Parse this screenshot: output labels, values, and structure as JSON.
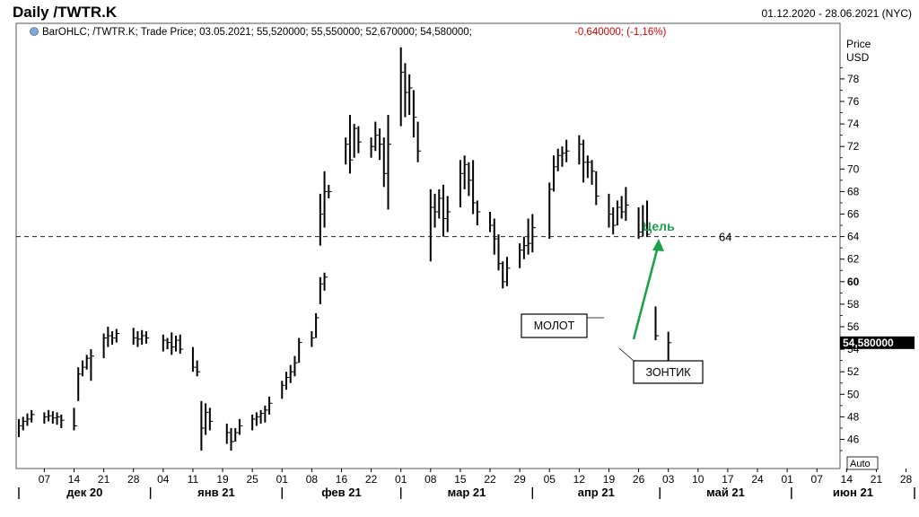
{
  "header": {
    "title": "Daily /TWTR.K",
    "date_range": "01.12.2020 - 28.06.2021 (NYC)"
  },
  "legend": {
    "prefix": "BarOHLC; /TWTR.K; Trade Price;  03.05.2021; 55,520000; 55,550000; 52,670000; 54,580000;",
    "change": "-0,640000; (-1,16%)"
  },
  "axis": {
    "y_title_1": "Price",
    "y_title_2": "USD",
    "y_ticks": [
      "46",
      "48",
      "50",
      "52",
      "54",
      "56",
      "58",
      "60",
      "62",
      "64",
      "66",
      "68",
      "70",
      "72",
      "74",
      "76",
      "78"
    ],
    "last_price": "54,580000",
    "auto_label": "Auto",
    "day_ticks": [
      "07",
      "14",
      "21",
      "28",
      "04",
      "11",
      "19",
      "25",
      "01",
      "08",
      "16",
      "22",
      "01",
      "08",
      "15",
      "22",
      "29",
      "05",
      "12",
      "19",
      "26",
      "03",
      "10",
      "17",
      "24",
      "01",
      "07",
      "14",
      "21",
      "28"
    ],
    "months": [
      "дек 20",
      "янв 21",
      "фев 21",
      "мар 21",
      "апр 21",
      "май 21",
      "июн 21"
    ]
  },
  "annotations": {
    "target_label": "Цель",
    "level_label": "64",
    "hammer_label": "МОЛОТ",
    "umbrella_label": "ЗОНТИК"
  },
  "colors": {
    "bar": "#000000",
    "target": "#1aa24a",
    "negative": "#d40000",
    "last_price_bg": "#000000"
  },
  "chart_data": {
    "type": "ohlc",
    "title": "Daily /TWTR.K",
    "ylabel": "Price USD",
    "ylim": [
      44,
      82
    ],
    "xlim": [
      "2020-12-01",
      "2021-06-28"
    ],
    "level": 64,
    "bars": [
      [
        "2020-12-01",
        47.8,
        46.2,
        47.2
      ],
      [
        "2020-12-02",
        48.0,
        46.8,
        47.6
      ],
      [
        "2020-12-03",
        48.3,
        47.2,
        47.8
      ],
      [
        "2020-12-04",
        48.6,
        47.5,
        48.2
      ],
      [
        "2020-12-07",
        48.4,
        47.4,
        48.0
      ],
      [
        "2020-12-08",
        48.6,
        47.6,
        48.1
      ],
      [
        "2020-12-09",
        48.5,
        47.4,
        47.9
      ],
      [
        "2020-12-10",
        48.4,
        47.3,
        48.0
      ],
      [
        "2020-12-11",
        48.2,
        47.0,
        47.7
      ],
      [
        "2020-12-14",
        48.8,
        46.8,
        47.2
      ],
      [
        "2020-12-15",
        52.4,
        49.4,
        51.8
      ],
      [
        "2020-12-16",
        53.0,
        51.6,
        52.4
      ],
      [
        "2020-12-17",
        53.5,
        52.2,
        53.2
      ],
      [
        "2020-12-18",
        54.0,
        51.2,
        53.4
      ],
      [
        "2020-12-21",
        55.4,
        53.2,
        55.0
      ],
      [
        "2020-12-22",
        56.0,
        54.2,
        55.2
      ],
      [
        "2020-12-23",
        55.6,
        54.4,
        55.0
      ],
      [
        "2020-12-24",
        55.8,
        54.6,
        55.4
      ],
      [
        "2020-12-28",
        55.9,
        54.4,
        55.0
      ],
      [
        "2020-12-29",
        55.6,
        54.2,
        54.9
      ],
      [
        "2020-12-30",
        55.7,
        54.4,
        55.2
      ],
      [
        "2020-12-31",
        55.6,
        54.5,
        55.0
      ],
      [
        "2021-01-04",
        55.3,
        53.8,
        54.8
      ],
      [
        "2021-01-05",
        55.0,
        54.0,
        54.6
      ],
      [
        "2021-01-06",
        55.5,
        53.5,
        54.2
      ],
      [
        "2021-01-07",
        55.2,
        53.8,
        54.8
      ],
      [
        "2021-01-08",
        55.3,
        53.6,
        54.0
      ],
      [
        "2021-01-11",
        54.2,
        52.0,
        52.4
      ],
      [
        "2021-01-12",
        53.0,
        51.6,
        52.0
      ],
      [
        "2021-01-13",
        49.4,
        45.0,
        47.0
      ],
      [
        "2021-01-14",
        49.2,
        46.4,
        48.4
      ],
      [
        "2021-01-15",
        48.8,
        46.8,
        47.6
      ],
      [
        "2021-01-19",
        47.4,
        45.6,
        46.6
      ],
      [
        "2021-01-20",
        47.0,
        45.0,
        45.8
      ],
      [
        "2021-01-21",
        47.0,
        45.8,
        46.6
      ],
      [
        "2021-01-22",
        47.8,
        46.4,
        47.2
      ],
      [
        "2021-01-25",
        48.2,
        46.8,
        47.8
      ],
      [
        "2021-01-26",
        48.4,
        47.2,
        48.0
      ],
      [
        "2021-01-27",
        48.6,
        47.4,
        48.3
      ],
      [
        "2021-01-28",
        49.0,
        47.5,
        48.6
      ],
      [
        "2021-01-29",
        49.8,
        48.2,
        49.2
      ],
      [
        "2021-02-01",
        51.2,
        49.6,
        50.8
      ],
      [
        "2021-02-02",
        52.0,
        50.4,
        51.5
      ],
      [
        "2021-02-03",
        52.6,
        51.0,
        52.0
      ],
      [
        "2021-02-04",
        53.4,
        51.6,
        52.8
      ],
      [
        "2021-02-05",
        55.0,
        52.8,
        54.6
      ],
      [
        "2021-02-08",
        55.6,
        54.2,
        55.0
      ],
      [
        "2021-02-09",
        57.2,
        55.0,
        56.8
      ],
      [
        "2021-02-10",
        60.4,
        58.0,
        59.8
      ],
      [
        "2021-02-11",
        60.8,
        59.2,
        60.4
      ],
      [
        "2021-02-10",
        67.8,
        63.2,
        66.0
      ],
      [
        "2021-02-11",
        69.8,
        64.8,
        68.0
      ],
      [
        "2021-02-12",
        68.6,
        67.4,
        68.0
      ],
      [
        "2021-02-16",
        72.8,
        70.4,
        72.2
      ],
      [
        "2021-02-17",
        74.8,
        69.6,
        70.8
      ],
      [
        "2021-02-18",
        74.0,
        71.0,
        73.6
      ],
      [
        "2021-02-19",
        73.8,
        71.4,
        72.4
      ],
      [
        "2021-02-22",
        72.8,
        71.0,
        72.0
      ],
      [
        "2021-02-23",
        74.2,
        71.6,
        73.0
      ],
      [
        "2021-02-24",
        73.6,
        70.8,
        72.2
      ],
      [
        "2021-02-25",
        72.8,
        68.4,
        69.6
      ],
      [
        "2021-02-26",
        74.8,
        66.4,
        72.2
      ],
      [
        "2021-03-01",
        80.8,
        73.8,
        78.6
      ],
      [
        "2021-03-02",
        79.4,
        74.6,
        76.8
      ],
      [
        "2021-03-03",
        78.4,
        74.8,
        77.2
      ],
      [
        "2021-03-04",
        77.0,
        72.8,
        74.6
      ],
      [
        "2021-03-05",
        74.2,
        70.6,
        71.6
      ],
      [
        "2021-03-08",
        68.2,
        61.8,
        66.6
      ],
      [
        "2021-03-09",
        67.8,
        64.8,
        66.2
      ],
      [
        "2021-03-10",
        68.2,
        65.6,
        67.4
      ],
      [
        "2021-03-11",
        68.6,
        64.0,
        65.6
      ],
      [
        "2021-03-12",
        67.6,
        64.4,
        66.2
      ],
      [
        "2021-03-15",
        70.8,
        66.6,
        69.6
      ],
      [
        "2021-03-16",
        71.2,
        68.2,
        70.4
      ],
      [
        "2021-03-17",
        70.6,
        67.6,
        69.0
      ],
      [
        "2021-03-18",
        70.8,
        66.0,
        67.0
      ],
      [
        "2021-03-19",
        67.2,
        65.0,
        66.2
      ],
      [
        "2021-03-22",
        66.2,
        64.4,
        65.0
      ],
      [
        "2021-03-23",
        65.6,
        62.4,
        63.8
      ],
      [
        "2021-03-24",
        64.2,
        61.0,
        61.6
      ],
      [
        "2021-03-25",
        61.8,
        59.4,
        60.0
      ],
      [
        "2021-03-26",
        62.2,
        59.6,
        61.2
      ],
      [
        "2021-03-29",
        63.4,
        61.2,
        62.8
      ],
      [
        "2021-03-30",
        64.0,
        62.0,
        63.2
      ],
      [
        "2021-03-31",
        65.6,
        62.4,
        63.4
      ],
      [
        "2021-04-01",
        66.0,
        62.6,
        64.8
      ],
      [
        "2021-04-05",
        68.8,
        63.8,
        68.2
      ],
      [
        "2021-04-06",
        71.2,
        68.0,
        70.2
      ],
      [
        "2021-04-07",
        71.8,
        69.8,
        71.2
      ],
      [
        "2021-04-08",
        72.0,
        70.2,
        71.4
      ],
      [
        "2021-04-09",
        72.6,
        70.6,
        71.6
      ],
      [
        "2021-04-12",
        73.0,
        70.4,
        72.2
      ],
      [
        "2021-04-13",
        72.6,
        68.8,
        70.6
      ],
      [
        "2021-04-14",
        71.2,
        69.2,
        70.6
      ],
      [
        "2021-04-15",
        70.8,
        68.6,
        69.8
      ],
      [
        "2021-04-16",
        69.8,
        66.8,
        67.6
      ],
      [
        "2021-04-19",
        67.8,
        64.8,
        66.0
      ],
      [
        "2021-04-20",
        66.6,
        64.2,
        65.0
      ],
      [
        "2021-04-21",
        67.2,
        65.0,
        66.6
      ],
      [
        "2021-04-22",
        67.6,
        65.6,
        66.2
      ],
      [
        "2021-04-23",
        68.4,
        65.4,
        66.8
      ],
      [
        "2021-04-26",
        66.6,
        63.8,
        64.4
      ],
      [
        "2021-04-27",
        66.8,
        64.0,
        65.0
      ],
      [
        "2021-04-28",
        67.2,
        64.0,
        64.2
      ],
      [
        "2021-04-30",
        57.8,
        54.8,
        55.2
      ],
      [
        "2021-05-03",
        55.55,
        52.67,
        54.58
      ]
    ]
  }
}
